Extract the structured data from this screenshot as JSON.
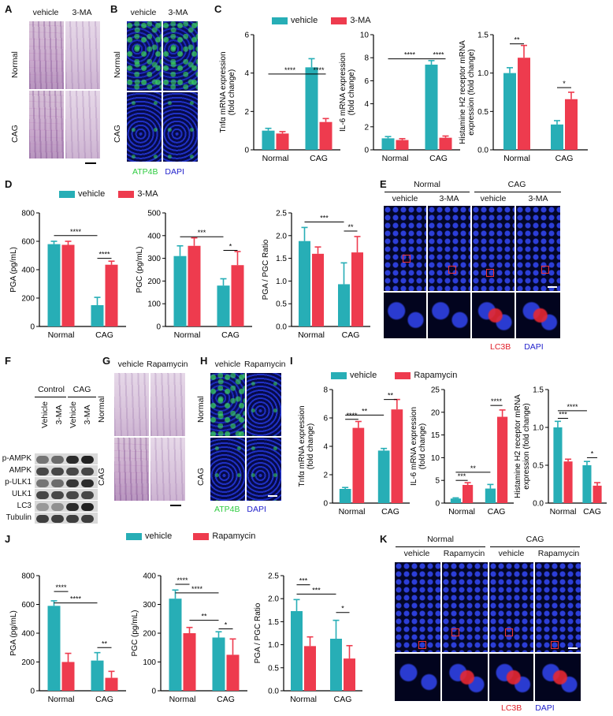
{
  "colors": {
    "vehicle": "#27aeb6",
    "treatment": "#ee3b4e",
    "atp4b": "#2ecc40",
    "dapi": "#2222cc",
    "lc3b": "#e0202a"
  },
  "panels": {
    "A": {
      "label": "A",
      "cols": [
        "vehicle",
        "3-MA"
      ],
      "rows": [
        "Normal",
        "CAG"
      ]
    },
    "B": {
      "label": "B",
      "cols": [
        "vehicle",
        "3-MA"
      ],
      "rows": [
        "Normal",
        "CAG"
      ],
      "stain1": "ATP4B",
      "stain2": "DAPI"
    },
    "C": {
      "label": "C",
      "legend": [
        "vehicle",
        "3-MA"
      ]
    },
    "D": {
      "label": "D",
      "legend": [
        "vehicle",
        "3-MA"
      ]
    },
    "E": {
      "label": "E",
      "groups": [
        "Normal",
        "CAG"
      ],
      "cols": [
        "vehicle",
        "3-MA",
        "vehicle",
        "3-MA"
      ],
      "stain1": "LC3B",
      "stain2": "DAPI"
    },
    "F": {
      "label": "F",
      "groups": [
        "Control",
        "CAG"
      ],
      "lanes": [
        "Vehicle",
        "3-MA",
        "Vehicle",
        "3-MA"
      ],
      "bands": [
        "p-AMPK",
        "AMPK",
        "p-ULK1",
        "ULK1",
        "LC3",
        "Tubulin"
      ]
    },
    "G": {
      "label": "G",
      "cols": [
        "vehicle",
        "Rapamycin"
      ],
      "rows": [
        "Normal",
        "CAG"
      ]
    },
    "H": {
      "label": "H",
      "cols": [
        "vehicle",
        "Rapamycin"
      ],
      "rows": [
        "Normal",
        "CAG"
      ],
      "stain1": "ATP4B",
      "stain2": "DAPI"
    },
    "I": {
      "label": "I",
      "legend": [
        "vehicle",
        "Rapamycin"
      ]
    },
    "J": {
      "label": "J",
      "legend": [
        "vehicle",
        "Rapamycin"
      ]
    },
    "K": {
      "label": "K",
      "groups": [
        "Normal",
        "CAG"
      ],
      "cols": [
        "vehicle",
        "Rapamycin",
        "vehicle",
        "Rapamycin"
      ],
      "stain1": "LC3B",
      "stain2": "DAPI"
    }
  },
  "chart_data": [
    {
      "id": "C1",
      "type": "bar",
      "categories": [
        "Normal",
        "CAG"
      ],
      "ylabel": "Tnfα mRNA expression\n(fold change)",
      "ylim": [
        0,
        6
      ],
      "yticks": [
        0,
        2,
        4,
        6
      ],
      "series": [
        {
          "name": "vehicle",
          "values": [
            1.0,
            4.3
          ],
          "err": [
            0.12,
            0.45
          ]
        },
        {
          "name": "3-MA",
          "values": [
            0.85,
            1.45
          ],
          "err": [
            0.1,
            0.18
          ]
        }
      ],
      "sig": [
        {
          "label": "****",
          "a": 0,
          "b": 2,
          "level": 3.95
        },
        {
          "label": "****",
          "a": 2,
          "b": 3,
          "level": 3.95
        }
      ]
    },
    {
      "id": "C2",
      "type": "bar",
      "categories": [
        "Normal",
        "CAG"
      ],
      "ylabel": "IL-6 mRNA expression\n(fold change)",
      "ylim": [
        0,
        10
      ],
      "yticks": [
        0,
        2,
        4,
        6,
        8,
        10
      ],
      "series": [
        {
          "name": "vehicle",
          "values": [
            1.0,
            7.4
          ],
          "err": [
            0.15,
            0.35
          ]
        },
        {
          "name": "3-MA",
          "values": [
            0.85,
            1.05
          ],
          "err": [
            0.12,
            0.15
          ]
        }
      ],
      "sig": [
        {
          "label": "****",
          "a": 0,
          "b": 2,
          "level": 7.9
        },
        {
          "label": "****",
          "a": 2,
          "b": 3,
          "level": 7.9
        }
      ]
    },
    {
      "id": "C3",
      "type": "bar",
      "categories": [
        "Normal",
        "CAG"
      ],
      "ylabel": "Histamine H2 receptor mRNA\nexpression (fold change)",
      "ylim": [
        0,
        1.5
      ],
      "yticks": [
        0,
        0.5,
        1.0,
        1.5
      ],
      "series": [
        {
          "name": "vehicle",
          "values": [
            1.0,
            0.33
          ],
          "err": [
            0.07,
            0.05
          ]
        },
        {
          "name": "3-MA",
          "values": [
            1.2,
            0.66
          ],
          "err": [
            0.16,
            0.09
          ]
        }
      ],
      "sig": [
        {
          "label": "**",
          "a": 0,
          "b": 1,
          "level": 1.38
        },
        {
          "label": "*",
          "a": 2,
          "b": 3,
          "level": 0.81
        }
      ]
    },
    {
      "id": "D1",
      "type": "bar",
      "categories": [
        "Normal",
        "CAG"
      ],
      "ylabel": "PGA (pg/mL)",
      "ylim": [
        0,
        800
      ],
      "yticks": [
        0,
        200,
        400,
        600,
        800
      ],
      "series": [
        {
          "name": "vehicle",
          "values": [
            580,
            150
          ],
          "err": [
            20,
            55
          ]
        },
        {
          "name": "3-MA",
          "values": [
            575,
            435
          ],
          "err": [
            25,
            25
          ]
        }
      ],
      "sig": [
        {
          "label": "****",
          "a": 0,
          "b": 2,
          "level": 640
        },
        {
          "label": "****",
          "a": 2,
          "b": 3,
          "level": 480
        }
      ]
    },
    {
      "id": "D2",
      "type": "bar",
      "categories": [
        "Normal",
        "CAG"
      ],
      "ylabel": "PGC (pg/mL)",
      "ylim": [
        0,
        500
      ],
      "yticks": [
        0,
        100,
        200,
        300,
        400,
        500
      ],
      "series": [
        {
          "name": "vehicle",
          "values": [
            310,
            180
          ],
          "err": [
            45,
            30
          ]
        },
        {
          "name": "3-MA",
          "values": [
            355,
            270
          ],
          "err": [
            35,
            60
          ]
        }
      ],
      "sig": [
        {
          "label": "***",
          "a": 0,
          "b": 2,
          "level": 395
        },
        {
          "label": "*",
          "a": 2,
          "b": 3,
          "level": 335
        }
      ]
    },
    {
      "id": "D3",
      "type": "bar",
      "categories": [
        "Normal",
        "CAG"
      ],
      "ylabel": "PGA / PGC Ratio",
      "ylim": [
        0,
        2.5
      ],
      "yticks": [
        0,
        0.5,
        1.0,
        1.5,
        2.0,
        2.5
      ],
      "series": [
        {
          "name": "vehicle",
          "values": [
            1.88,
            0.93
          ],
          "err": [
            0.3,
            0.47
          ]
        },
        {
          "name": "3-MA",
          "values": [
            1.6,
            1.63
          ],
          "err": [
            0.15,
            0.35
          ]
        }
      ],
      "sig": [
        {
          "label": "***",
          "a": 0,
          "b": 2,
          "level": 2.3
        },
        {
          "label": "**",
          "a": 2,
          "b": 3,
          "level": 2.1
        }
      ]
    },
    {
      "id": "I1",
      "type": "bar",
      "categories": [
        "Normal",
        "CAG"
      ],
      "ylabel": "Tnfα mRNA expression\n(fold change)",
      "ylim": [
        0,
        8
      ],
      "yticks": [
        0,
        2,
        4,
        6,
        8
      ],
      "series": [
        {
          "name": "vehicle",
          "values": [
            1.0,
            3.7
          ],
          "err": [
            0.1,
            0.15
          ]
        },
        {
          "name": "Rapamycin",
          "values": [
            5.3,
            6.6
          ],
          "err": [
            0.45,
            0.7
          ]
        }
      ],
      "sig": [
        {
          "label": "****",
          "a": 0,
          "b": 1,
          "level": 5.9
        },
        {
          "label": "**",
          "a": 0,
          "b": 2,
          "level": 6.2
        },
        {
          "label": "**",
          "a": 2,
          "b": 3,
          "level": 7.3
        }
      ]
    },
    {
      "id": "I2",
      "type": "bar",
      "categories": [
        "Normal",
        "CAG"
      ],
      "ylabel": "IL-6 mRNA expression\n(fold change)",
      "ylim": [
        0,
        25
      ],
      "yticks": [
        0,
        5,
        10,
        15,
        20,
        25
      ],
      "series": [
        {
          "name": "vehicle",
          "values": [
            1.0,
            3.2
          ],
          "err": [
            0.15,
            0.9
          ]
        },
        {
          "name": "Rapamycin",
          "values": [
            4.0,
            19.0
          ],
          "err": [
            0.5,
            1.5
          ]
        }
      ],
      "sig": [
        {
          "label": "***",
          "a": 0,
          "b": 1,
          "level": 5.0
        },
        {
          "label": "**",
          "a": 0,
          "b": 2,
          "level": 6.8
        },
        {
          "label": "****",
          "a": 2,
          "b": 3,
          "level": 21.5
        }
      ]
    },
    {
      "id": "I3",
      "type": "bar",
      "categories": [
        "Normal",
        "CAG"
      ],
      "ylabel": "Histamine H2 receptor mRNA\nexpression (fold change)",
      "ylim": [
        0,
        1.5
      ],
      "yticks": [
        0,
        0.5,
        1.0,
        1.5
      ],
      "series": [
        {
          "name": "vehicle",
          "values": [
            1.0,
            0.5
          ],
          "err": [
            0.08,
            0.05
          ]
        },
        {
          "name": "Rapamycin",
          "values": [
            0.55,
            0.23
          ],
          "err": [
            0.03,
            0.04
          ]
        }
      ],
      "sig": [
        {
          "label": "***",
          "a": 0,
          "b": 1,
          "level": 1.12
        },
        {
          "label": "****",
          "a": 0,
          "b": 2,
          "level": 1.22
        },
        {
          "label": "*",
          "a": 2,
          "b": 3,
          "level": 0.6
        }
      ]
    },
    {
      "id": "J1",
      "type": "bar",
      "categories": [
        "Normal",
        "CAG"
      ],
      "ylabel": "PGA (pg/mL)",
      "ylim": [
        0,
        800
      ],
      "yticks": [
        0,
        200,
        400,
        600,
        800
      ],
      "series": [
        {
          "name": "vehicle",
          "values": [
            590,
            210
          ],
          "err": [
            35,
            55
          ]
        },
        {
          "name": "Rapamycin",
          "values": [
            200,
            90
          ],
          "err": [
            60,
            45
          ]
        }
      ],
      "sig": [
        {
          "label": "****",
          "a": 0,
          "b": 1,
          "level": 690
        },
        {
          "label": "****",
          "a": 0,
          "b": 2,
          "level": 610
        },
        {
          "label": "**",
          "a": 2,
          "b": 3,
          "level": 300
        }
      ]
    },
    {
      "id": "J2",
      "type": "bar",
      "categories": [
        "Normal",
        "CAG"
      ],
      "ylabel": "PGC (pg/mL)",
      "ylim": [
        0,
        400
      ],
      "yticks": [
        0,
        100,
        200,
        300,
        400
      ],
      "series": [
        {
          "name": "vehicle",
          "values": [
            320,
            185
          ],
          "err": [
            30,
            20
          ]
        },
        {
          "name": "Rapamycin",
          "values": [
            200,
            125
          ],
          "err": [
            20,
            55
          ]
        }
      ],
      "sig": [
        {
          "label": "****",
          "a": 0,
          "b": 1,
          "level": 370
        },
        {
          "label": "****",
          "a": 0,
          "b": 2,
          "level": 340
        },
        {
          "label": "**",
          "a": 1,
          "b": 2,
          "level": 245
        },
        {
          "label": "*",
          "a": 2,
          "b": 3,
          "level": 215
        }
      ]
    },
    {
      "id": "J3",
      "type": "bar",
      "categories": [
        "Normal",
        "CAG"
      ],
      "ylabel": "PGA / PGC Ratio",
      "ylim": [
        0,
        2.5
      ],
      "yticks": [
        0,
        0.5,
        1.0,
        1.5,
        2.0,
        2.5
      ],
      "series": [
        {
          "name": "vehicle",
          "values": [
            1.73,
            1.13
          ],
          "err": [
            0.25,
            0.4
          ]
        },
        {
          "name": "Rapamycin",
          "values": [
            0.97,
            0.7
          ],
          "err": [
            0.2,
            0.28
          ]
        }
      ],
      "sig": [
        {
          "label": "***",
          "a": 0,
          "b": 1,
          "level": 2.3
        },
        {
          "label": "***",
          "a": 0,
          "b": 2,
          "level": 2.1
        },
        {
          "label": "*",
          "a": 2,
          "b": 3,
          "level": 1.7
        }
      ]
    }
  ]
}
